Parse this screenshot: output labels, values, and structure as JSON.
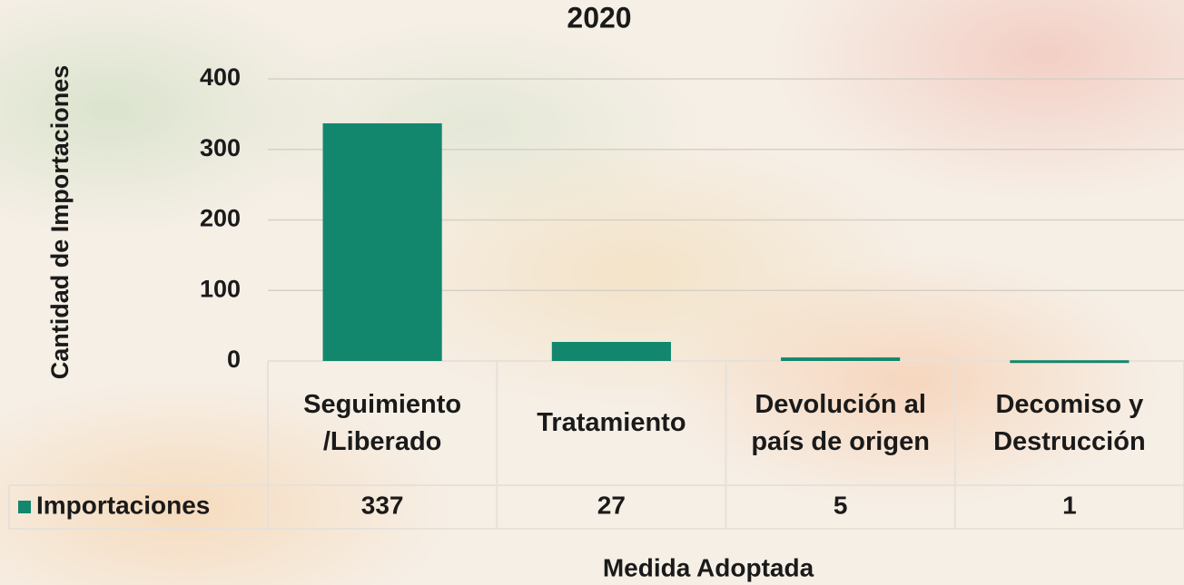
{
  "chart_data": {
    "type": "bar",
    "title": "2020",
    "y_label": "Cantidad de Importaciones",
    "x_label": "Medida Adoptada",
    "categories": [
      "Seguimiento /Liberado",
      "Tratamiento",
      "Devolución al país de origen",
      "Decomiso y Destrucción"
    ],
    "series": [
      {
        "name": "Importaciones",
        "color": "#12876e",
        "values": [
          337,
          27,
          5,
          1
        ]
      }
    ],
    "ylim": [
      0,
      400
    ],
    "yticks": [
      0,
      100,
      200,
      300,
      400
    ],
    "grid": true,
    "data_table": true
  }
}
